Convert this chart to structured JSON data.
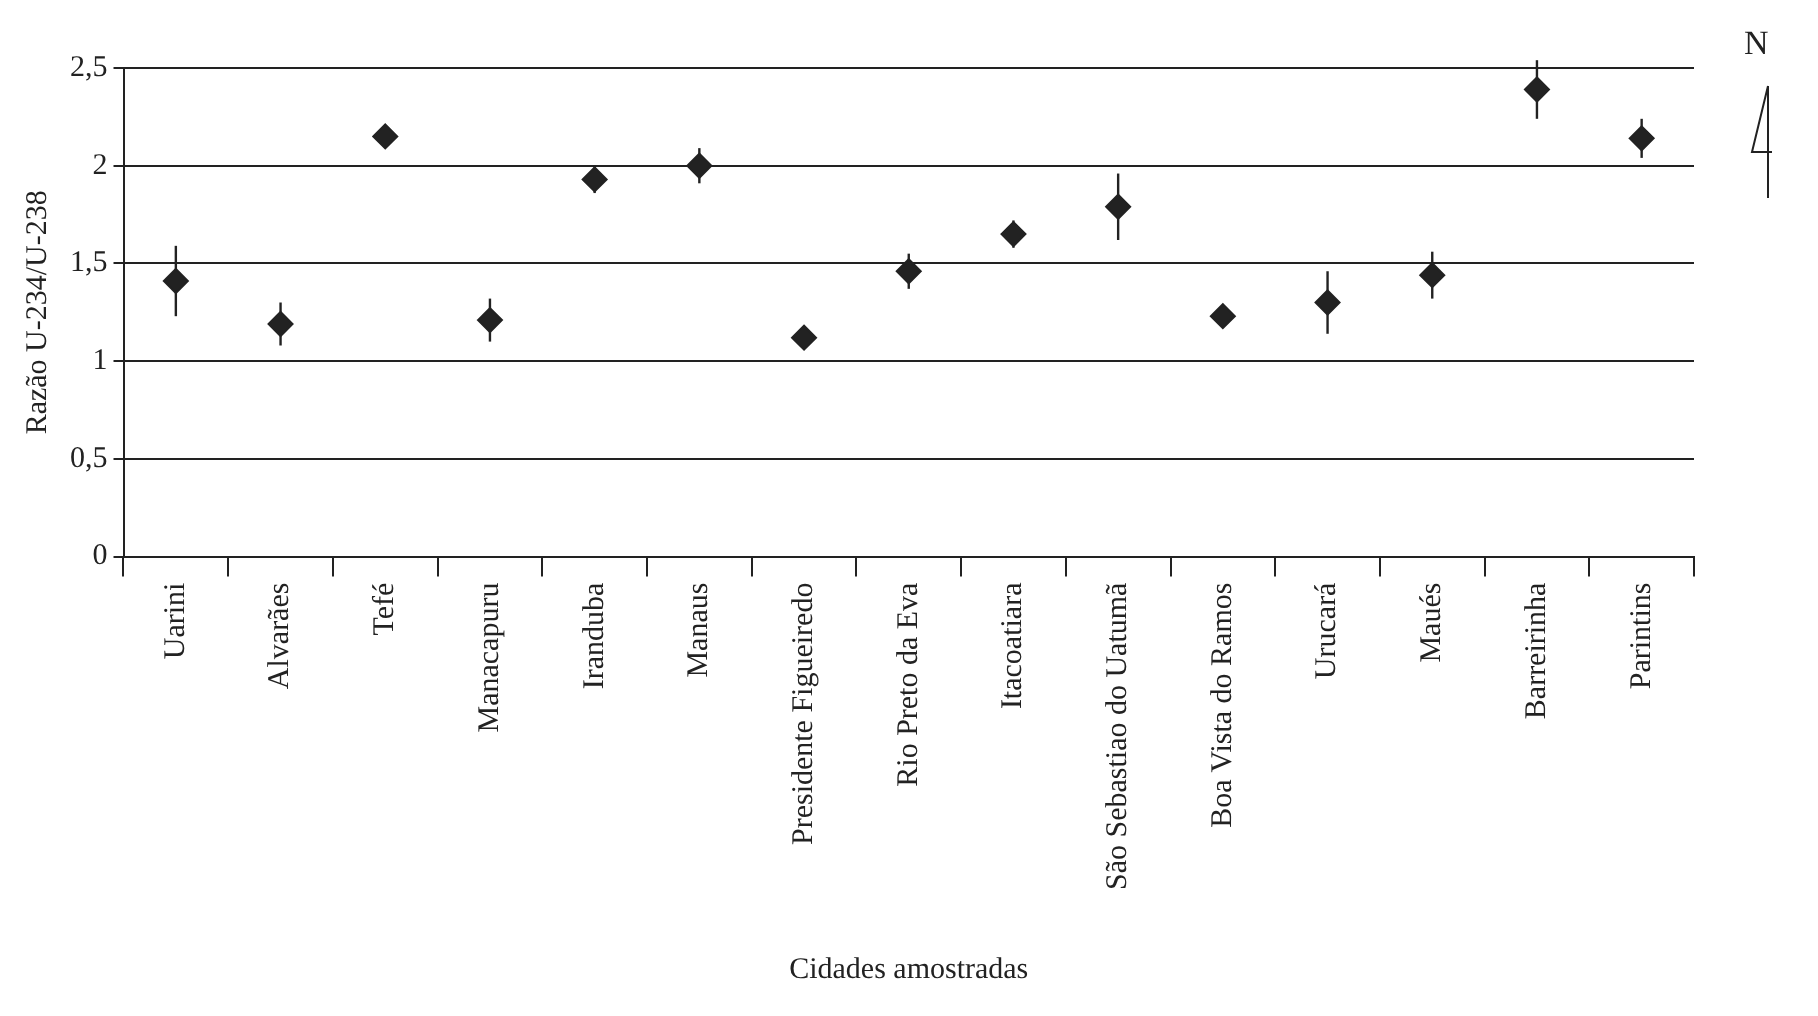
{
  "chart_data": {
    "type": "scatter",
    "xlabel": "Cidades amostradas",
    "ylabel": "Razão U-234/U-238",
    "categories": [
      "Uarini",
      "Alvarães",
      "Tefé",
      "Manacapuru",
      "Iranduba",
      "Manaus",
      "Presidente Figueiredo",
      "Rio Preto da Eva",
      "Itacoatiara",
      "São Sebastiao do Uatumã",
      "Boa Vista do Ramos",
      "Urucará",
      "Maués",
      "Barreirinha",
      "Parintins"
    ],
    "values": [
      1.41,
      1.19,
      2.15,
      1.21,
      1.93,
      2.0,
      1.12,
      1.46,
      1.65,
      1.79,
      1.23,
      1.3,
      1.44,
      2.39,
      2.14
    ],
    "errors": [
      0.18,
      0.11,
      null,
      0.11,
      0.07,
      0.09,
      null,
      0.09,
      0.07,
      0.17,
      null,
      0.16,
      0.12,
      0.15,
      0.1
    ],
    "color": "#222222",
    "marker": "diamond",
    "grid": "y",
    "legend": false,
    "ylim": [
      0,
      2.5
    ],
    "yticks": [
      0,
      {
        "value": 0.5,
        "label": "0,5"
      },
      1,
      {
        "value": 1.5,
        "label": "1,5"
      },
      2,
      {
        "value": 2.5,
        "label": "2,5"
      }
    ],
    "annotations": [
      "N"
    ]
  }
}
